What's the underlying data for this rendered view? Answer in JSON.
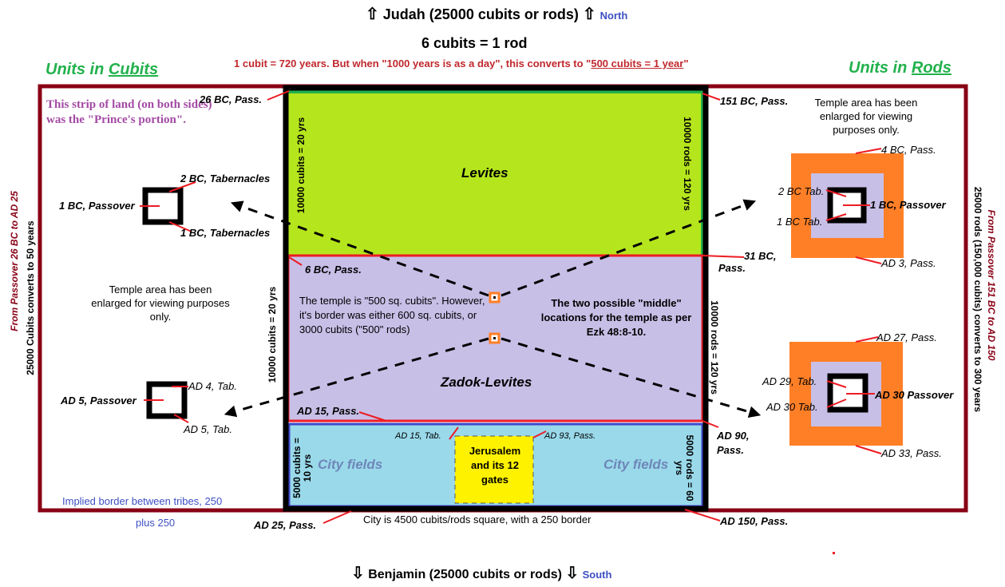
{
  "header": {
    "north_tribe": "Judah (25000 cubits or rods)",
    "north_dir": "North",
    "rod_conversion": "6 cubits = 1 rod",
    "cubit_years_a": "1 cubit = 720 years. But when \"1000 years is as a day\", this converts to \"",
    "cubit_years_b": "500 cubits = 1 year",
    "cubit_years_c": "\""
  },
  "footer": {
    "south_tribe": "Benjamin (25000 cubits or rods)",
    "south_dir": "South",
    "city_note": "City is 4500 cubits/rods square, with a 250 border",
    "implied_border": "Implied border between tribes, 250",
    "plus": "plus 250"
  },
  "left_panel": {
    "title_a": "Units in ",
    "title_b": "Cubits",
    "prince_note": "This strip of land (on both sides) was the \"Prince's portion\".",
    "temple_note": "Temple area has been enlarged for viewing purposes only.",
    "side_a": "From Passover 26 BC to AD 25",
    "side_b": "25000 Cubits converts to 50 years",
    "labels": {
      "bc2_tab": "2 BC, Tabernacles",
      "bc1_pass": "1 BC, Passover",
      "bc1_tab": "1 BC, Tabernacles",
      "ad4_tab": "AD 4, Tab.",
      "ad5_pass": "AD 5, Passover",
      "ad5_tab": "AD 5, Tab.",
      "bc26": "26 BC, Pass.",
      "ad25": "AD 25, Pass."
    }
  },
  "right_panel": {
    "title_a": "Units in ",
    "title_b": "Rods",
    "temple_note": "Temple area has been enlarged for viewing purposes only.",
    "side_a": "From Passover 151 BC to AD 150",
    "side_b": "25000 rods (150,000 cubits) converts to 300 years",
    "labels": {
      "bc4": "4 BC, Pass.",
      "bc2_tab": "2 BC Tab.",
      "bc1_pass": "1 BC, Passover",
      "bc1_tab": "1 BC Tab.",
      "ad3": "AD 3, Pass.",
      "ad27": "AD 27, Pass.",
      "ad29": "AD 29, Tab.",
      "ad30_pass": "AD 30 Passover",
      "ad30_tab": "AD 30 Tab.",
      "ad33": "AD 33, Pass.",
      "bc151": "151 BC, Pass.",
      "bc31_a": "31 BC,",
      "bc31_b": "Pass.",
      "ad90_a": "AD 90,",
      "ad90_b": "Pass.",
      "ad150": "AD 150, Pass."
    }
  },
  "center": {
    "levites": "Levites",
    "zadok": "Zadok-Levites",
    "city_fields_left": "City fields",
    "city_fields_right": "City fields",
    "jerusalem": "Jerusalem and its 12 gates",
    "temple_note": "The temple is \"500 sq. cubits\". However, it's border was either 600 sq. cubits, or 3000 cubits (\"500\" rods)",
    "middle_note": "The two possible \"middle\" locations for the temple as per Ezk 48:8-10.",
    "bc6": "6 BC, Pass.",
    "ad15": "AD 15, Pass.",
    "ad15_tab": "AD 15, Tab.",
    "ad93": "AD 93, Pass.",
    "dim_levites_left": "10000 cubits = 20 yrs",
    "dim_levites_right": "10000 rods = 120 yrs",
    "dim_zadok_left": "10000 cubits = 20 yrs",
    "dim_zadok_right": "10000 rods = 120 yrs",
    "dim_city_left": "5000 cubits = 10 yrs",
    "dim_city_right": "5000 rods = 60 yrs"
  },
  "colors": {
    "levites": "#b5e61d",
    "zadok": "#c8bfe7",
    "city": "#99d9ea",
    "jerusalem": "#fff200",
    "orange": "#ff7f27",
    "maroon": "#880015",
    "red": "#ed1c24",
    "green": "#22b14c",
    "blue": "#3f48cc"
  }
}
